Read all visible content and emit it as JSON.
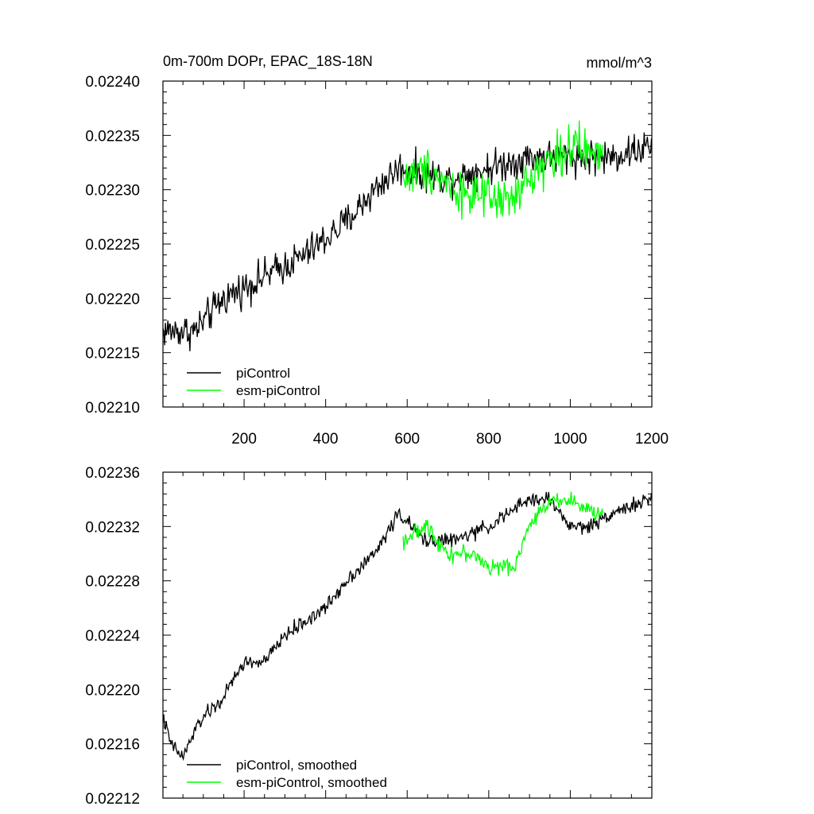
{
  "chart_data": [
    {
      "type": "line",
      "title": "0m-700m DOPr, EPAC_18S-18N",
      "units": "mmol/m^3",
      "xlabel": "",
      "ylabel": "",
      "xlim": [
        1,
        1200
      ],
      "ylim": [
        0.0221,
        0.0224
      ],
      "xticks": [
        200,
        400,
        600,
        800,
        1000,
        1200
      ],
      "xtick_labels": [
        "200",
        "400",
        "600",
        "800",
        "1000",
        "1200"
      ],
      "yticks": [
        0.0221,
        0.02215,
        0.0222,
        0.02225,
        0.0223,
        0.02235,
        0.0224
      ],
      "ytick_labels": [
        "0.02210",
        "0.02215",
        "0.02220",
        "0.02225",
        "0.02230",
        "0.02235",
        "0.02240"
      ],
      "legend_position": "bottom-left",
      "series": [
        {
          "name": "piControl",
          "color": "#000000",
          "x_range": [
            1,
            1200
          ],
          "noise": 2.4e-05,
          "points": [
            [
              1,
              0.02217
            ],
            [
              80,
              0.02217
            ],
            [
              150,
              0.0222
            ],
            [
              250,
              0.02222
            ],
            [
              350,
              0.02224
            ],
            [
              450,
              0.02227
            ],
            [
              520,
              0.0223
            ],
            [
              580,
              0.02232
            ],
            [
              700,
              0.02231
            ],
            [
              800,
              0.02232
            ],
            [
              900,
              0.02233
            ],
            [
              1000,
              0.02233
            ],
            [
              1100,
              0.02233
            ],
            [
              1200,
              0.02234
            ]
          ]
        },
        {
          "name": "esm-piControl",
          "color": "#00ff00",
          "x_range": [
            590,
            1080
          ],
          "noise": 3e-05,
          "points": [
            [
              590,
              0.02231
            ],
            [
              650,
              0.02232
            ],
            [
              720,
              0.0223
            ],
            [
              800,
              0.02229
            ],
            [
              860,
              0.02229
            ],
            [
              920,
              0.02232
            ],
            [
              1000,
              0.02234
            ],
            [
              1080,
              0.02233
            ]
          ]
        }
      ]
    },
    {
      "type": "line",
      "title": "",
      "xlabel": "",
      "ylabel": "",
      "xlim": [
        1,
        1200
      ],
      "ylim": [
        0.02212,
        0.02236
      ],
      "xticks": [
        200,
        400,
        600,
        800,
        1000,
        1200
      ],
      "xtick_labels": [],
      "yticks": [
        0.02212,
        0.02216,
        0.0222,
        0.02224,
        0.02228,
        0.02232,
        0.02236
      ],
      "ytick_labels": [
        "0.02212",
        "0.02216",
        "0.02220",
        "0.02224",
        "0.02228",
        "0.02232",
        "0.02236"
      ],
      "legend_position": "bottom-left",
      "series": [
        {
          "name": "piControl, smoothed",
          "color": "#000000",
          "x_range": [
            1,
            1200
          ],
          "noise": 8e-06,
          "points": [
            [
              1,
              0.02218
            ],
            [
              20,
              0.02216
            ],
            [
              50,
              0.02215
            ],
            [
              80,
              0.02217
            ],
            [
              100,
              0.02218
            ],
            [
              140,
              0.02219
            ],
            [
              200,
              0.02222
            ],
            [
              250,
              0.02222
            ],
            [
              300,
              0.02224
            ],
            [
              350,
              0.02225
            ],
            [
              400,
              0.02226
            ],
            [
              450,
              0.02228
            ],
            [
              520,
              0.0223
            ],
            [
              560,
              0.02232
            ],
            [
              580,
              0.02233
            ],
            [
              640,
              0.02231
            ],
            [
              720,
              0.02231
            ],
            [
              800,
              0.02232
            ],
            [
              850,
              0.02233
            ],
            [
              900,
              0.02234
            ],
            [
              950,
              0.02234
            ],
            [
              1000,
              0.02232
            ],
            [
              1050,
              0.02232
            ],
            [
              1100,
              0.02233
            ],
            [
              1200,
              0.02234
            ]
          ]
        },
        {
          "name": "esm-piControl, smoothed",
          "color": "#00ff00",
          "x_range": [
            590,
            1080
          ],
          "noise": 9e-06,
          "points": [
            [
              590,
              0.02231
            ],
            [
              650,
              0.02232
            ],
            [
              700,
              0.0223
            ],
            [
              760,
              0.0223
            ],
            [
              800,
              0.02229
            ],
            [
              860,
              0.02229
            ],
            [
              900,
              0.02232
            ],
            [
              950,
              0.02234
            ],
            [
              1000,
              0.02234
            ],
            [
              1050,
              0.02233
            ],
            [
              1080,
              0.02233
            ]
          ]
        }
      ]
    }
  ]
}
